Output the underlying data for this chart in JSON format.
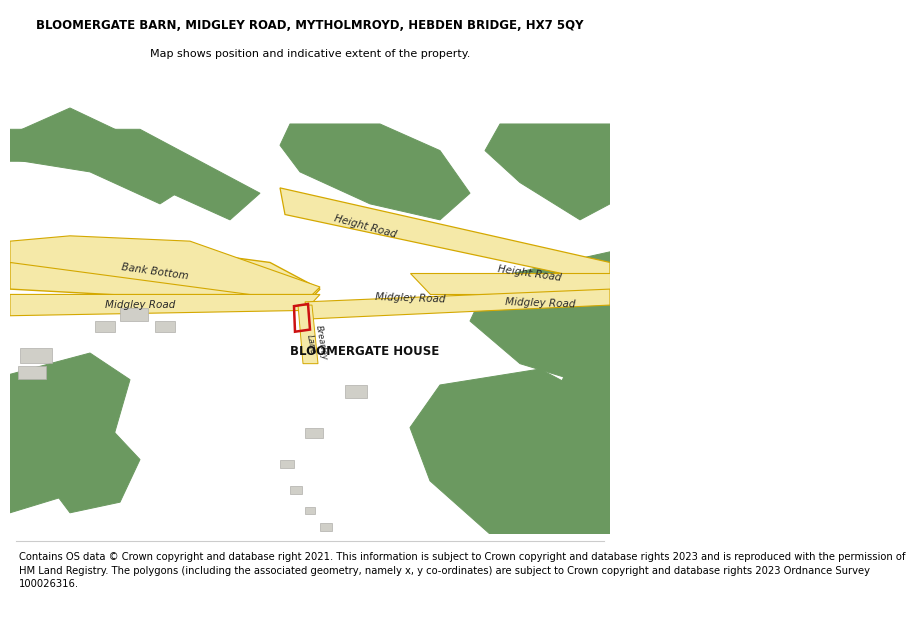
{
  "title": "BLOOMERGATE BARN, MIDGLEY ROAD, MYTHOLMROYD, HEBDEN BRIDGE, HX7 5QY",
  "subtitle": "Map shows position and indicative extent of the property.",
  "footer": "Contains OS data © Crown copyright and database right 2021. This information is subject to Crown copyright and database rights 2023 and is reproduced with the permission of\nHM Land Registry. The polygons (including the associated geometry, namely x, y co-ordinates) are subject to Crown copyright and database rights 2023 Ordnance Survey\n100026316.",
  "bg_color": "#ffffff",
  "map_bg": "#f2f0eb",
  "road_fill": "#f5e9a8",
  "road_border": "#d4a800",
  "green_color": "#6b9960",
  "building_color": "#d0cfc8",
  "building_border": "#b0afaa",
  "label_color": "#2a2a2a",
  "red_color": "#cc1111",
  "title_fontsize": 8.5,
  "subtitle_fontsize": 8.0,
  "footer_fontsize": 7.2,
  "label_fontsize": 7.5,
  "big_label_fontsize": 8.5
}
